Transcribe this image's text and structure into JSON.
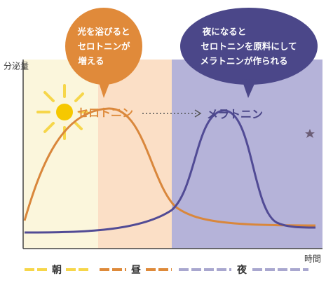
{
  "axes": {
    "y_label": "分泌量",
    "x_label": "時間"
  },
  "bubbles": [
    {
      "lines": [
        "光を浴びると",
        "セロトニンが",
        "増える"
      ]
    },
    {
      "lines": [
        "夜になると",
        "セロトニンを原料にして",
        "メラトニンが作られる"
      ]
    }
  ],
  "curves": {
    "serotonin": "セロトニン",
    "melatonin": "メラトニン"
  },
  "legend": [
    "朝",
    "昼",
    "夜"
  ]
}
